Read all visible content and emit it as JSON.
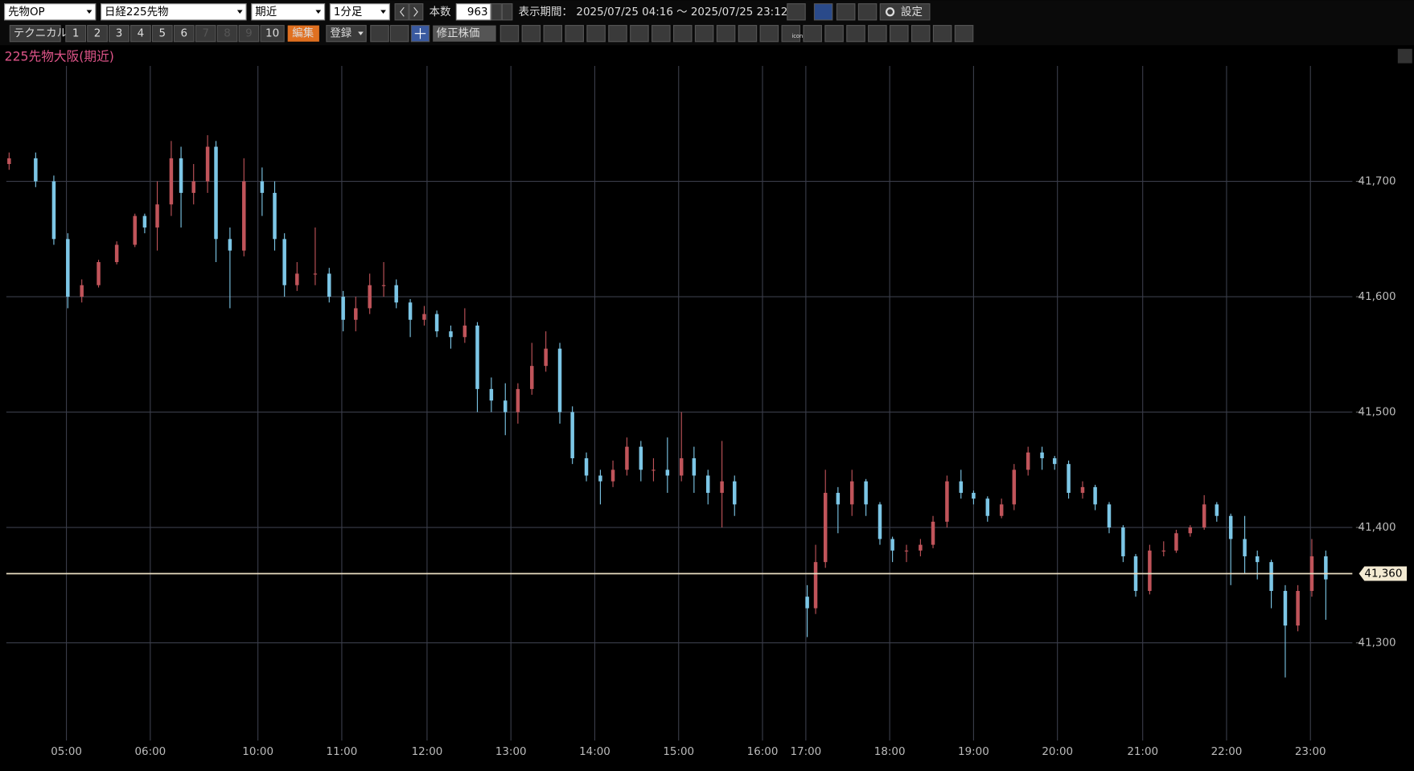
{
  "toolbar": {
    "market": "先物OP",
    "symbol": "日経225先物",
    "contract": "期近",
    "interval": "1分足",
    "count_label": "本数",
    "count": "963",
    "period_label": "表示期間：",
    "period": "2025/07/25 04:16 ～ 2025/07/25 23:12",
    "settings": "設定",
    "technical": "テクニカル",
    "slots": [
      "1",
      "2",
      "3",
      "4",
      "5",
      "6",
      "7",
      "8",
      "9",
      "10"
    ],
    "edit": "編集",
    "register": "登録",
    "adjusted": "修正株価",
    "icon": "icon"
  },
  "chart_data": {
    "type": "candlestick",
    "title": "225先物大阪(期近)",
    "up_color": "#c0545a",
    "down_color": "#7cc6e6",
    "grid": true,
    "xlim": [
      0,
      963
    ],
    "ylim": [
      41220,
      41800
    ],
    "xticks": [
      {
        "value": 43,
        "label": "05:00"
      },
      {
        "value": 103,
        "label": "06:00"
      },
      {
        "value": 180,
        "label": "10:00"
      },
      {
        "value": 240,
        "label": "11:00"
      },
      {
        "value": 301,
        "label": "12:00"
      },
      {
        "value": 361,
        "label": "13:00"
      },
      {
        "value": 421,
        "label": "14:00"
      },
      {
        "value": 481,
        "label": "15:00"
      },
      {
        "value": 541,
        "label": "16:00"
      },
      {
        "value": 572,
        "label": "17:00"
      },
      {
        "value": 632,
        "label": "18:00"
      },
      {
        "value": 692,
        "label": "19:00"
      },
      {
        "value": 752,
        "label": "20:00"
      },
      {
        "value": 813,
        "label": "21:00"
      },
      {
        "value": 873,
        "label": "22:00"
      },
      {
        "value": 933,
        "label": "23:00"
      }
    ],
    "yticks": [
      {
        "value": 41300,
        "label": "41,300"
      },
      {
        "value": 41400,
        "label": "41,400"
      },
      {
        "value": 41500,
        "label": "41,500"
      },
      {
        "value": 41600,
        "label": "41,600"
      },
      {
        "value": 41700,
        "label": "41,700"
      }
    ],
    "last_price": {
      "value": 41360,
      "label": "41,360"
    },
    "candles": [
      [
        2,
        41715,
        41725,
        41710,
        41720
      ],
      [
        21,
        41720,
        41725,
        41695,
        41700
      ],
      [
        34,
        41700,
        41705,
        41645,
        41650
      ],
      [
        44,
        41650,
        41655,
        41590,
        41600
      ],
      [
        54,
        41600,
        41615,
        41595,
        41610
      ],
      [
        66,
        41610,
        41632,
        41608,
        41630
      ],
      [
        79,
        41630,
        41648,
        41628,
        41645
      ],
      [
        92,
        41645,
        41672,
        41643,
        41670
      ],
      [
        99,
        41670,
        41672,
        41655,
        41660
      ],
      [
        108,
        41660,
        41700,
        41640,
        41680
      ],
      [
        118,
        41680,
        41735,
        41670,
        41720
      ],
      [
        125,
        41720,
        41730,
        41660,
        41690
      ],
      [
        134,
        41690,
        41715,
        41680,
        41700
      ],
      [
        144,
        41700,
        41740,
        41690,
        41730
      ],
      [
        150,
        41730,
        41735,
        41630,
        41650
      ],
      [
        160,
        41650,
        41660,
        41590,
        41640
      ],
      [
        170,
        41640,
        41720,
        41635,
        41700
      ],
      [
        183,
        41700,
        41712,
        41670,
        41690
      ],
      [
        192,
        41690,
        41700,
        41640,
        41650
      ],
      [
        199,
        41650,
        41655,
        41600,
        41610
      ],
      [
        208,
        41610,
        41630,
        41605,
        41620
      ],
      [
        221,
        41620,
        41660,
        41610,
        41620
      ],
      [
        231,
        41620,
        41625,
        41595,
        41600
      ],
      [
        241,
        41600,
        41605,
        41570,
        41580
      ],
      [
        250,
        41580,
        41600,
        41570,
        41590
      ],
      [
        260,
        41590,
        41620,
        41585,
        41610
      ],
      [
        270,
        41610,
        41630,
        41600,
        41610
      ],
      [
        279,
        41610,
        41615,
        41590,
        41595
      ],
      [
        289,
        41595,
        41598,
        41565,
        41580
      ],
      [
        299,
        41580,
        41592,
        41575,
        41585
      ],
      [
        308,
        41585,
        41588,
        41565,
        41570
      ],
      [
        318,
        41570,
        41575,
        41555,
        41565
      ],
      [
        328,
        41565,
        41590,
        41560,
        41575
      ],
      [
        337,
        41575,
        41578,
        41500,
        41520
      ],
      [
        347,
        41520,
        41530,
        41500,
        41510
      ],
      [
        357,
        41510,
        41525,
        41480,
        41500
      ],
      [
        366,
        41500,
        41525,
        41490,
        41520
      ],
      [
        376,
        41520,
        41560,
        41515,
        41540
      ],
      [
        386,
        41540,
        41570,
        41535,
        41555
      ],
      [
        396,
        41555,
        41560,
        41490,
        41500
      ],
      [
        405,
        41500,
        41505,
        41455,
        41460
      ],
      [
        415,
        41460,
        41465,
        41440,
        41445
      ],
      [
        425,
        41445,
        41450,
        41420,
        41440
      ],
      [
        434,
        41440,
        41458,
        41435,
        41450
      ],
      [
        444,
        41450,
        41478,
        41445,
        41470
      ],
      [
        454,
        41470,
        41475,
        41440,
        41450
      ],
      [
        463,
        41450,
        41460,
        41440,
        41450
      ],
      [
        473,
        41450,
        41478,
        41430,
        41445
      ],
      [
        483,
        41445,
        41500,
        41440,
        41460
      ],
      [
        492,
        41460,
        41470,
        41430,
        41445
      ],
      [
        502,
        41445,
        41450,
        41420,
        41430
      ],
      [
        512,
        41430,
        41475,
        41400,
        41440
      ],
      [
        521,
        41440,
        41445,
        41410,
        41420
      ],
      [
        573,
        41340,
        41350,
        41305,
        41330
      ],
      [
        579,
        41330,
        41385,
        41325,
        41370
      ],
      [
        586,
        41370,
        41450,
        41365,
        41430
      ],
      [
        595,
        41430,
        41435,
        41395,
        41420
      ],
      [
        605,
        41420,
        41450,
        41410,
        41440
      ],
      [
        615,
        41440,
        41442,
        41410,
        41420
      ],
      [
        625,
        41420,
        41422,
        41385,
        41390
      ],
      [
        634,
        41390,
        41392,
        41370,
        41380
      ],
      [
        644,
        41380,
        41385,
        41370,
        41380
      ],
      [
        654,
        41380,
        41390,
        41375,
        41385
      ],
      [
        663,
        41385,
        41410,
        41382,
        41405
      ],
      [
        673,
        41405,
        41445,
        41400,
        41440
      ],
      [
        683,
        41440,
        41450,
        41425,
        41430
      ],
      [
        692,
        41430,
        41432,
        41420,
        41425
      ],
      [
        702,
        41425,
        41427,
        41405,
        41410
      ],
      [
        712,
        41410,
        41425,
        41408,
        41420
      ],
      [
        721,
        41420,
        41455,
        41415,
        41450
      ],
      [
        731,
        41450,
        41470,
        41445,
        41465
      ],
      [
        741,
        41465,
        41470,
        41450,
        41460
      ],
      [
        750,
        41460,
        41462,
        41450,
        41455
      ],
      [
        760,
        41455,
        41458,
        41425,
        41430
      ],
      [
        770,
        41430,
        41440,
        41425,
        41435
      ],
      [
        779,
        41435,
        41437,
        41415,
        41420
      ],
      [
        789,
        41420,
        41422,
        41395,
        41400
      ],
      [
        799,
        41400,
        41402,
        41370,
        41375
      ],
      [
        808,
        41375,
        41377,
        41340,
        41345
      ],
      [
        818,
        41345,
        41385,
        41342,
        41380
      ],
      [
        828,
        41380,
        41388,
        41375,
        41380
      ],
      [
        837,
        41380,
        41398,
        41378,
        41395
      ],
      [
        847,
        41395,
        41402,
        41392,
        41400
      ],
      [
        857,
        41400,
        41428,
        41398,
        41420
      ],
      [
        866,
        41420,
        41422,
        41405,
        41410
      ],
      [
        876,
        41410,
        41412,
        41350,
        41390
      ],
      [
        886,
        41390,
        41410,
        41360,
        41375
      ],
      [
        895,
        41375,
        41380,
        41355,
        41370
      ],
      [
        905,
        41370,
        41372,
        41330,
        41345
      ],
      [
        915,
        41345,
        41350,
        41270,
        41315
      ],
      [
        924,
        41315,
        41350,
        41310,
        41345
      ],
      [
        934,
        41345,
        41390,
        41340,
        41375
      ],
      [
        944,
        41375,
        41380,
        41320,
        41355
      ]
    ]
  }
}
